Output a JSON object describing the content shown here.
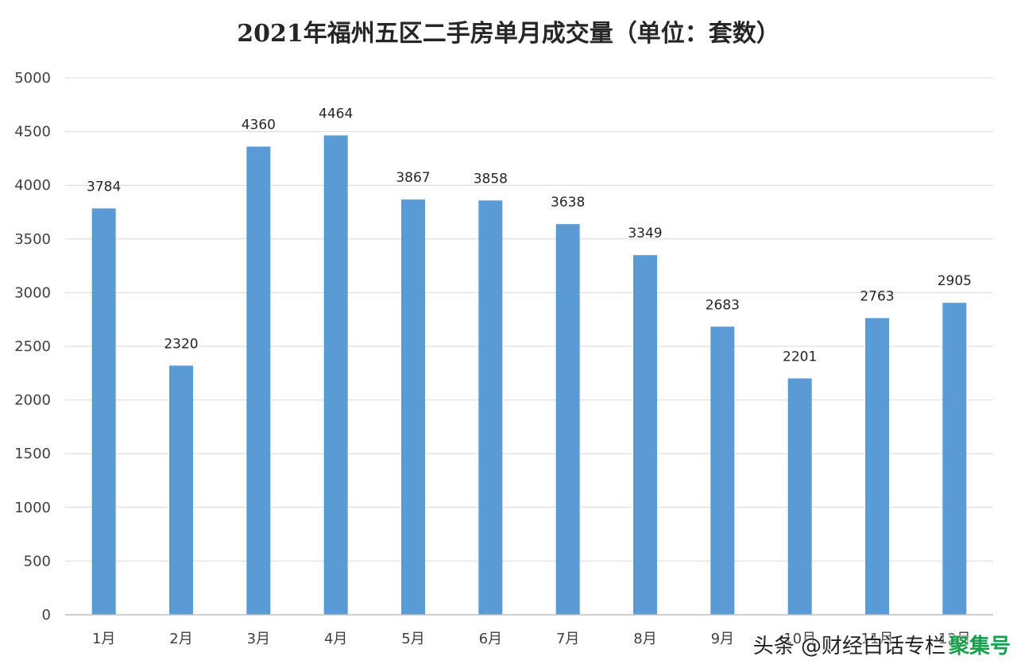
{
  "chart_data": {
    "type": "bar",
    "title": "2021年福州五区二手房单月成交量（单位：套数）",
    "xlabel": "",
    "ylabel": "",
    "categories": [
      "1月",
      "2月",
      "3月",
      "4月",
      "5月",
      "6月",
      "7月",
      "8月",
      "9月",
      "10月",
      "11月",
      "12月"
    ],
    "values": [
      3784,
      2320,
      4360,
      4464,
      3867,
      3858,
      3638,
      3349,
      2683,
      2201,
      2763,
      2905
    ],
    "ylim": [
      0,
      5000
    ],
    "yticks": [
      0,
      500,
      1000,
      1500,
      2000,
      2500,
      3000,
      3500,
      4000,
      4500,
      5000
    ],
    "grid": true,
    "legend": "none",
    "bar_color": "#5b9bd5"
  },
  "watermark": {
    "text": "头条 @财经白话专栏",
    "logo": "聚集号"
  }
}
